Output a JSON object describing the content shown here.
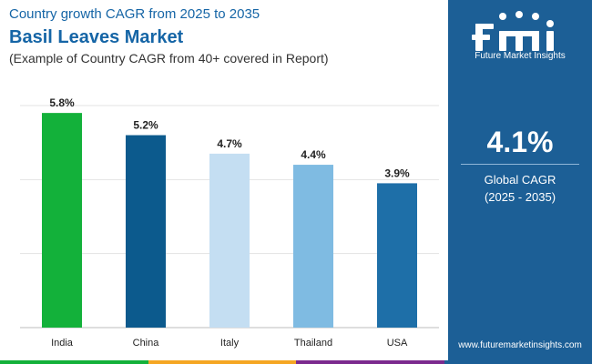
{
  "header": {
    "line1": "Country growth CAGR from 2025 to 2035",
    "title": "Basil Leaves Market",
    "subtitle": "(Example of Country CAGR from 40+ covered in Report)"
  },
  "chart_data": {
    "type": "bar",
    "categories": [
      "India",
      "China",
      "Italy",
      "Thailand",
      "USA"
    ],
    "values": [
      5.8,
      5.2,
      4.7,
      4.4,
      3.9
    ],
    "labels": [
      "5.8%",
      "5.2%",
      "4.7%",
      "4.4%",
      "3.9%"
    ],
    "colors": [
      "#13b13a",
      "#0c5a8d",
      "#c4def2",
      "#7fbbe2",
      "#1e6fa8"
    ],
    "title": "",
    "xlabel": "",
    "ylabel": "",
    "ylim": [
      0,
      6
    ],
    "grid": true
  },
  "panel": {
    "logo_text": "Future Market Insights",
    "kpi_value": "4.1%",
    "kpi_label_1": "Global CAGR",
    "kpi_label_2": "(2025 - 2035)",
    "url": "www.futuremarketinsights.com",
    "background": "#1c5f96"
  },
  "strip_colors": [
    "#13b13a",
    "#f5a623",
    "#7b2a8e",
    "#1c5f96"
  ]
}
